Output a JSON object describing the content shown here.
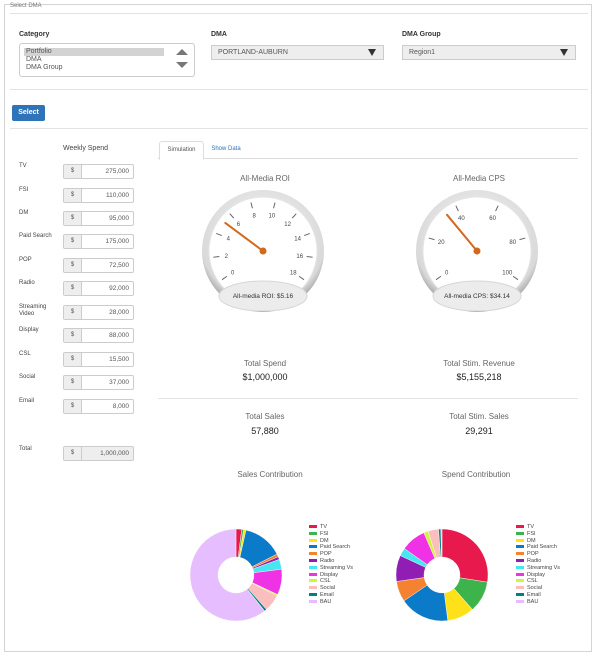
{
  "header": {
    "title": "Select DMA"
  },
  "filters": {
    "category_label": "Category",
    "category_options": [
      "Portfolio",
      "DMA",
      "DMA Group"
    ],
    "dma_label": "DMA",
    "dma_value": "PORTLAND-AUBURN",
    "dma_group_label": "DMA Group",
    "dma_group_value": "Region1",
    "select_button": "Select"
  },
  "spend": {
    "heading": "Weekly Spend",
    "currency": "$",
    "channels": [
      {
        "name": "TV",
        "value": "275,000"
      },
      {
        "name": "FSI",
        "value": "110,000"
      },
      {
        "name": "DM",
        "value": "95,000"
      },
      {
        "name": "Paid Search",
        "value": "175,000"
      },
      {
        "name": "POP",
        "value": "72,500"
      },
      {
        "name": "Radio",
        "value": "92,000"
      },
      {
        "name": "Streaming Video",
        "value": "28,000"
      },
      {
        "name": "Display",
        "value": "88,000"
      },
      {
        "name": "CSL",
        "value": "15,500"
      },
      {
        "name": "Social",
        "value": "37,000"
      },
      {
        "name": "Email",
        "value": "8,000"
      }
    ],
    "total_label": "Total",
    "total_value": "1,000,000"
  },
  "tabs": [
    {
      "label": "Simulation",
      "active": true
    },
    {
      "label": "Show Data",
      "active": false
    }
  ],
  "gauges": [
    {
      "title": "All-Media ROI",
      "ticks": [
        "0",
        "2",
        "4",
        "6",
        "8",
        "10",
        "12",
        "14",
        "16",
        "18"
      ],
      "min": 0,
      "max": 18,
      "value": 5.16,
      "readout": "All-media ROI: $5.16"
    },
    {
      "title": "All-Media CPS",
      "ticks": [
        "0",
        "20",
        "40",
        "60",
        "80",
        "100"
      ],
      "min": 0,
      "max": 100,
      "value": 34.14,
      "readout": "All-media CPS: $34.14"
    }
  ],
  "stats": [
    {
      "label": "Total Spend",
      "value": "$1,000,000"
    },
    {
      "label": "Total Stim. Revenue",
      "value": "$5,155,218"
    },
    {
      "label": "Total Sales",
      "value": "57,880"
    },
    {
      "label": "Total Stim. Sales",
      "value": "29,291"
    }
  ],
  "chart_data": [
    {
      "type": "pie",
      "title": "Sales Contribution",
      "series": [
        {
          "name": "TV",
          "value": 2.0,
          "color": "#e8194c"
        },
        {
          "name": "FSI",
          "value": 0.7,
          "color": "#3cb44b"
        },
        {
          "name": "DM",
          "value": 0.8,
          "color": "#ffe119"
        },
        {
          "name": "Paid Search",
          "value": 14.0,
          "color": "#0a7ac9"
        },
        {
          "name": "POP",
          "value": 1.0,
          "color": "#f58231"
        },
        {
          "name": "Radio",
          "value": 1.0,
          "color": "#911eb4"
        },
        {
          "name": "Streaming Vs",
          "value": 3.5,
          "color": "#46e8f0"
        },
        {
          "name": "Display",
          "value": 9.0,
          "color": "#f032e6"
        },
        {
          "name": "CSL",
          "value": 0.5,
          "color": "#d2f53c"
        },
        {
          "name": "Social",
          "value": 6.0,
          "color": "#fabebe"
        },
        {
          "name": "Email",
          "value": 0.8,
          "color": "#008080"
        },
        {
          "name": "BAU",
          "value": 60.7,
          "color": "#e6beff"
        }
      ]
    },
    {
      "type": "pie",
      "title": "Spend Contribution",
      "series": [
        {
          "name": "TV",
          "value": 27.5,
          "color": "#e8194c"
        },
        {
          "name": "FSI",
          "value": 11.0,
          "color": "#3cb44b"
        },
        {
          "name": "DM",
          "value": 9.5,
          "color": "#ffe119"
        },
        {
          "name": "Paid Search",
          "value": 17.5,
          "color": "#0a7ac9"
        },
        {
          "name": "POP",
          "value": 7.25,
          "color": "#f58231"
        },
        {
          "name": "Radio",
          "value": 9.2,
          "color": "#911eb4"
        },
        {
          "name": "Streaming Vs",
          "value": 2.8,
          "color": "#46e8f0"
        },
        {
          "name": "Display",
          "value": 8.8,
          "color": "#f032e6"
        },
        {
          "name": "CSL",
          "value": 1.55,
          "color": "#d2f53c"
        },
        {
          "name": "Social",
          "value": 3.7,
          "color": "#fabebe"
        },
        {
          "name": "Email",
          "value": 0.8,
          "color": "#008080"
        },
        {
          "name": "BAU",
          "value": 0.4,
          "color": "#e6beff"
        }
      ]
    }
  ]
}
